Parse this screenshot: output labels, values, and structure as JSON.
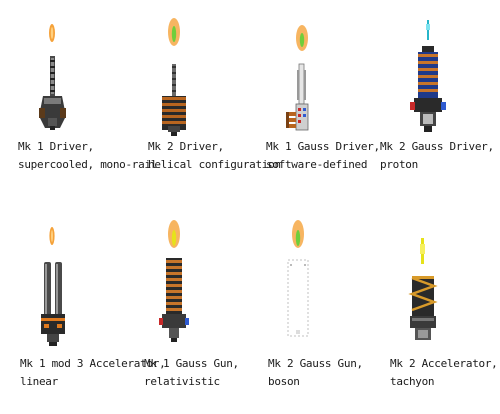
{
  "weapons": [
    {
      "line1": "Mk 1 Driver,",
      "line2": "supercooled, mono-rail",
      "projectile": "orange-bolt"
    },
    {
      "line1": "Mk 2 Driver,",
      "line2": "helical configuration",
      "projectile": "orange-green-bolt"
    },
    {
      "line1": "Mk 1 Gauss Driver,",
      "line2": "software-defined",
      "projectile": "orange-green-bolt"
    },
    {
      "line1": "Mk 2 Gauss Driver,",
      "line2": "proton",
      "projectile": "blue-spark"
    },
    {
      "line1": "Mk 1 mod 3 Accelerator,",
      "line2": "linear",
      "projectile": "orange-bolt"
    },
    {
      "line1": "Mk 1 Gauss Gun,",
      "line2": "relativistic",
      "projectile": "orange-green-bolt"
    },
    {
      "line1": "Mk 2 Gauss Gun,",
      "line2": "boson",
      "projectile": "orange-green-bolt"
    },
    {
      "line1": "Mk 2 Accelerator,",
      "line2": "tachyon",
      "projectile": "yellow-beam"
    }
  ],
  "colors": {
    "orange": "#f5a23a",
    "green": "#6fce3c",
    "metal_dark": "#3a3a3a",
    "metal_light": "#9a9a9a",
    "copper": "#b8651f",
    "blue": "#2f5bd1",
    "red": "#c82a2a",
    "yellow": "#e6e21a",
    "cyan": "#27b5c9"
  }
}
